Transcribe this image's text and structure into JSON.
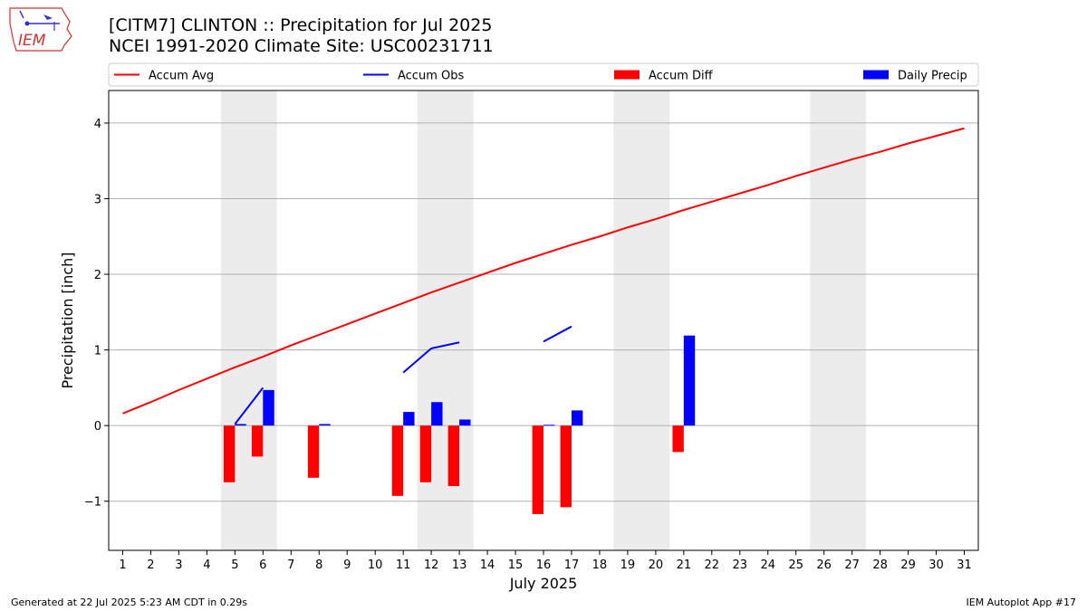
{
  "header": {
    "title_line1": "[CITM7] CLINTON :: Precipitation for Jul 2025",
    "title_line2": "NCEI 1991-2020 Climate Site: USC00231711",
    "logo_text": "IEM"
  },
  "footer": {
    "generated": "Generated at 22 Jul 2025 5:23 AM CDT in 0.29s",
    "app": "IEM Autoplot App #17"
  },
  "chart_data": {
    "type": "bar",
    "xlabel": "July 2025",
    "ylabel": "Precipitation [inch]",
    "xlim": [
      0.5,
      31.5
    ],
    "ylim": [
      -1.65,
      4.43
    ],
    "x_ticks": [
      1,
      2,
      3,
      4,
      5,
      6,
      7,
      8,
      9,
      10,
      11,
      12,
      13,
      14,
      15,
      16,
      17,
      18,
      19,
      20,
      21,
      22,
      23,
      24,
      25,
      26,
      27,
      28,
      29,
      30,
      31
    ],
    "y_ticks": [
      -1,
      0,
      1,
      2,
      3,
      4
    ],
    "y_tick_labels": [
      "−1",
      "0",
      "1",
      "2",
      "3",
      "4"
    ],
    "grid": "horizontal",
    "legend": {
      "placement": "top",
      "entries": [
        {
          "label": "Accum Avg",
          "kind": "line",
          "color": "#ff0000"
        },
        {
          "label": "Accum Obs",
          "kind": "line",
          "color": "#0000ff"
        },
        {
          "label": "Accum Diff",
          "kind": "bar",
          "color": "#ff0000"
        },
        {
          "label": "Daily Precip",
          "kind": "bar",
          "color": "#0000ff"
        }
      ]
    },
    "weekend_shading": [
      [
        4.5,
        6.5
      ],
      [
        11.5,
        13.5
      ],
      [
        18.5,
        20.5
      ],
      [
        25.5,
        27.5
      ]
    ],
    "series": [
      {
        "name": "Accum Avg",
        "kind": "line",
        "color": "#ff0000",
        "x": [
          1,
          2,
          3,
          4,
          5,
          6,
          7,
          8,
          9,
          10,
          11,
          12,
          13,
          14,
          15,
          16,
          17,
          18,
          19,
          20,
          21,
          22,
          23,
          24,
          25,
          26,
          27,
          28,
          29,
          30,
          31
        ],
        "values": [
          0.16,
          0.31,
          0.47,
          0.62,
          0.77,
          0.91,
          1.06,
          1.2,
          1.34,
          1.48,
          1.62,
          1.76,
          1.89,
          2.02,
          2.15,
          2.27,
          2.39,
          2.5,
          2.62,
          2.73,
          2.85,
          2.96,
          3.07,
          3.18,
          3.3,
          3.41,
          3.52,
          3.62,
          3.73,
          3.83,
          3.93
        ]
      },
      {
        "name": "Accum Obs",
        "kind": "line",
        "color": "#0000ff",
        "segments": [
          {
            "x": [
              5,
              6
            ],
            "values": [
              0.02,
              0.5
            ]
          },
          {
            "x": [
              11,
              12,
              13
            ],
            "values": [
              0.7,
              1.02,
              1.1
            ]
          },
          {
            "x": [
              16,
              17
            ],
            "values": [
              1.11,
              1.31
            ]
          }
        ]
      },
      {
        "name": "Accum Diff",
        "kind": "bar",
        "color": "#ff0000",
        "x": [
          5,
          6,
          8,
          11,
          12,
          13,
          16,
          17,
          21
        ],
        "values": [
          -0.75,
          -0.41,
          -0.69,
          -0.93,
          -0.75,
          -0.8,
          -1.17,
          -1.08,
          -0.35
        ]
      },
      {
        "name": "Daily Precip",
        "kind": "bar",
        "color": "#0000ff",
        "x": [
          5,
          6,
          8,
          11,
          12,
          13,
          16,
          17,
          21
        ],
        "values": [
          0.02,
          0.47,
          0.02,
          0.18,
          0.31,
          0.08,
          0.01,
          0.2,
          1.19
        ]
      }
    ]
  }
}
